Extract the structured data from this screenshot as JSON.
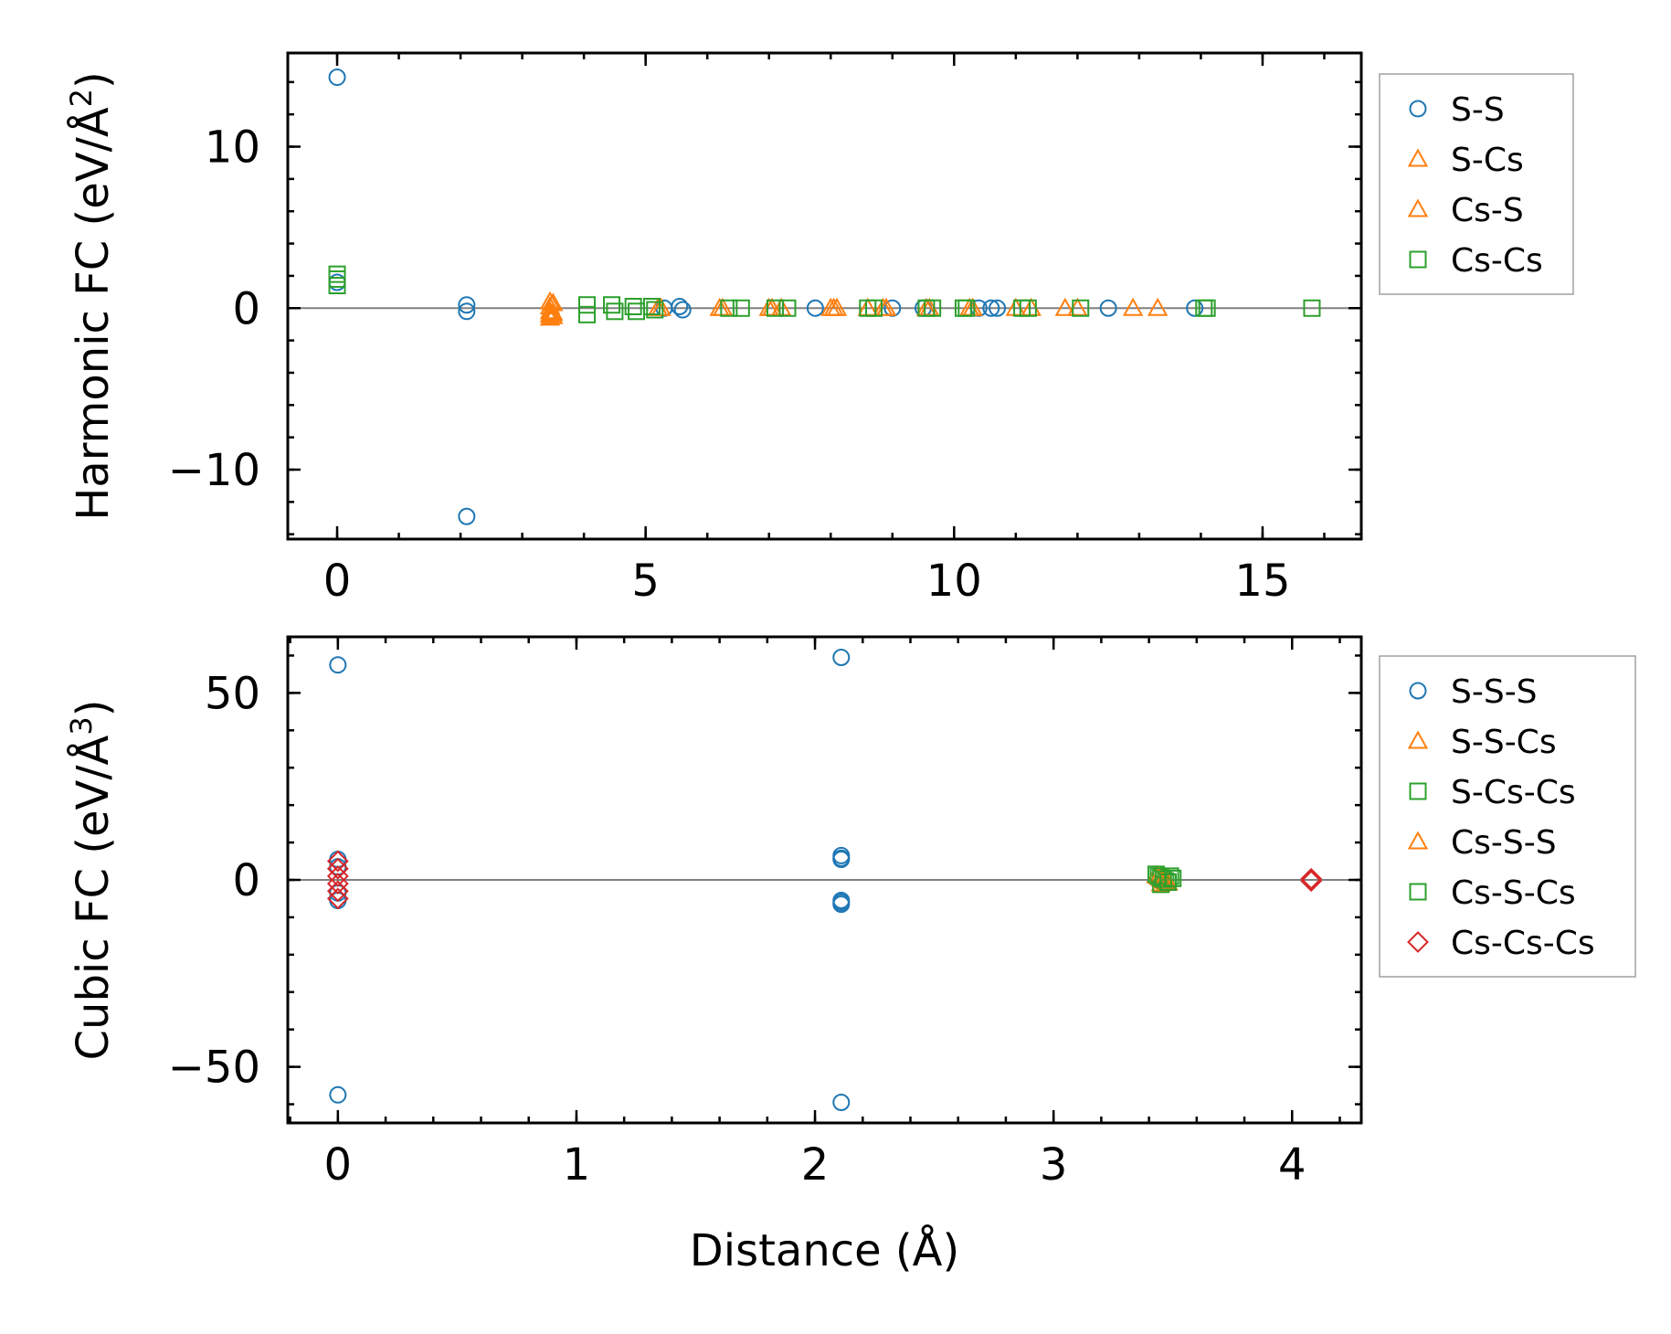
{
  "chart_data": [
    {
      "type": "scatter",
      "title": "",
      "xlabel": "",
      "ylabel": "Harmonic FC (eV/Å2)",
      "ylabel_parts": {
        "base": "Harmonic FC (eV/Å",
        "sup": "2",
        "close": ")"
      },
      "xlim": [
        -0.8,
        16.6
      ],
      "ylim": [
        -14.3,
        15.8
      ],
      "xticks": [
        0,
        5,
        10,
        15
      ],
      "xtick_labels": [
        "0",
        "5",
        "10",
        "15"
      ],
      "yticks": [
        -10,
        0,
        10
      ],
      "ytick_labels": [
        "−10",
        "0",
        "10"
      ],
      "x_minor_step": 1,
      "y_minor_step": 2,
      "zero_line": true,
      "legend_position": "outside-right-top",
      "series": [
        {
          "name": "S-S",
          "marker": "circle",
          "color": "#1f77b4",
          "x": [
            0.0,
            0.0,
            2.1,
            2.1,
            2.1,
            5.3,
            5.55,
            5.6,
            7.75,
            9.0,
            9.5,
            10.4,
            10.6,
            10.7,
            12.5,
            13.9
          ],
          "y": [
            14.3,
            1.6,
            0.2,
            -0.2,
            -12.9,
            0.0,
            0.1,
            -0.1,
            0.0,
            0.0,
            0.0,
            0.0,
            0.0,
            0.0,
            0.0,
            0.0
          ]
        },
        {
          "name": "S-Cs",
          "marker": "triangle",
          "color": "#ff7f0e",
          "x": [
            3.45,
            3.45,
            3.45,
            3.45,
            3.45,
            5.2,
            6.2,
            7.0,
            7.2,
            8.0,
            8.1,
            8.9,
            9.6,
            10.3,
            11.0,
            11.8,
            12.9
          ],
          "y": [
            0.4,
            0.1,
            -0.2,
            -0.4,
            -0.6,
            0.0,
            0.0,
            0.0,
            0.0,
            0.0,
            0.0,
            0.0,
            0.0,
            0.0,
            0.0,
            0.0,
            0.0
          ]
        },
        {
          "name": "Cs-S",
          "marker": "triangle",
          "color": "#ff7f0e",
          "x": [
            3.5,
            3.5,
            3.5,
            5.25,
            6.25,
            7.05,
            8.05,
            8.6,
            8.85,
            9.55,
            10.25,
            11.25,
            12.0,
            13.3
          ],
          "y": [
            0.3,
            -0.3,
            -0.5,
            0.0,
            0.0,
            0.0,
            0.0,
            0.0,
            0.0,
            0.0,
            0.0,
            0.0,
            0.0,
            0.0
          ]
        },
        {
          "name": "Cs-Cs",
          "marker": "square",
          "color": "#2ca02c",
          "x": [
            0.0,
            0.0,
            0.0,
            4.05,
            4.05,
            4.45,
            4.5,
            4.8,
            4.85,
            5.1,
            5.15,
            6.35,
            6.55,
            7.1,
            7.3,
            8.6,
            8.7,
            9.55,
            9.65,
            10.15,
            10.2,
            11.1,
            11.2,
            12.05,
            14.05,
            14.1,
            15.8
          ],
          "y": [
            2.1,
            1.8,
            1.4,
            0.2,
            -0.4,
            0.2,
            -0.2,
            0.1,
            -0.2,
            0.1,
            -0.1,
            0.0,
            0.0,
            0.0,
            0.0,
            0.0,
            0.0,
            0.0,
            0.0,
            0.0,
            0.0,
            0.0,
            0.0,
            0.0,
            0.0,
            0.0,
            0.0
          ]
        }
      ]
    },
    {
      "type": "scatter",
      "title": "",
      "xlabel": "Distance (Å)",
      "ylabel": "Cubic FC (eV/Å3)",
      "ylabel_parts": {
        "base": "Cubic FC (eV/Å",
        "sup": "3",
        "close": ")"
      },
      "xlim": [
        -0.21,
        4.29
      ],
      "ylim": [
        -65,
        65
      ],
      "xticks": [
        0,
        1,
        2,
        3,
        4
      ],
      "xtick_labels": [
        "0",
        "1",
        "2",
        "3",
        "4"
      ],
      "yticks": [
        -50,
        0,
        50
      ],
      "ytick_labels": [
        "−50",
        "0",
        "50"
      ],
      "x_minor_step": 0.2,
      "y_minor_step": 10,
      "zero_line": true,
      "legend_position": "outside-right-top",
      "series": [
        {
          "name": "S-S-S",
          "marker": "circle",
          "color": "#1f77b4",
          "x": [
            0.0,
            0.0,
            0.0,
            0.0,
            0.0,
            0.0,
            2.11,
            2.11,
            2.11,
            2.11,
            2.11,
            2.11,
            2.11,
            2.11
          ],
          "y": [
            57.5,
            5.5,
            3.5,
            -3.5,
            -5.5,
            -57.5,
            59.5,
            6.5,
            5.5,
            -5.5,
            -6.5,
            -59.5,
            5.8,
            -6.0
          ]
        },
        {
          "name": "S-S-Cs",
          "marker": "triangle",
          "color": "#ff7f0e",
          "x": [
            3.43,
            3.45,
            3.47,
            3.45
          ],
          "y": [
            1.2,
            0.3,
            -0.4,
            -1.0
          ]
        },
        {
          "name": "S-Cs-Cs",
          "marker": "square",
          "color": "#2ca02c",
          "x": [
            3.43,
            3.45,
            3.47,
            3.49,
            3.45
          ],
          "y": [
            1.5,
            0.5,
            -0.3,
            1.0,
            -1.2
          ]
        },
        {
          "name": "Cs-S-S",
          "marker": "triangle",
          "color": "#ff7f0e",
          "x": [
            3.44,
            3.46,
            3.48
          ],
          "y": [
            0.8,
            -0.2,
            -0.8
          ]
        },
        {
          "name": "Cs-S-Cs",
          "marker": "square",
          "color": "#2ca02c",
          "x": [
            3.44,
            3.46,
            3.48,
            3.5
          ],
          "y": [
            1.0,
            0.2,
            -0.6,
            0.4
          ]
        },
        {
          "name": "Cs-Cs-Cs",
          "marker": "diamond",
          "color": "#d62728",
          "x": [
            0.0,
            0.0,
            0.0,
            0.0,
            0.0,
            0.0,
            4.08,
            4.08
          ],
          "y": [
            5.0,
            3.0,
            1.0,
            -1.0,
            -3.0,
            -5.0,
            0.3,
            -0.3
          ]
        }
      ]
    }
  ]
}
